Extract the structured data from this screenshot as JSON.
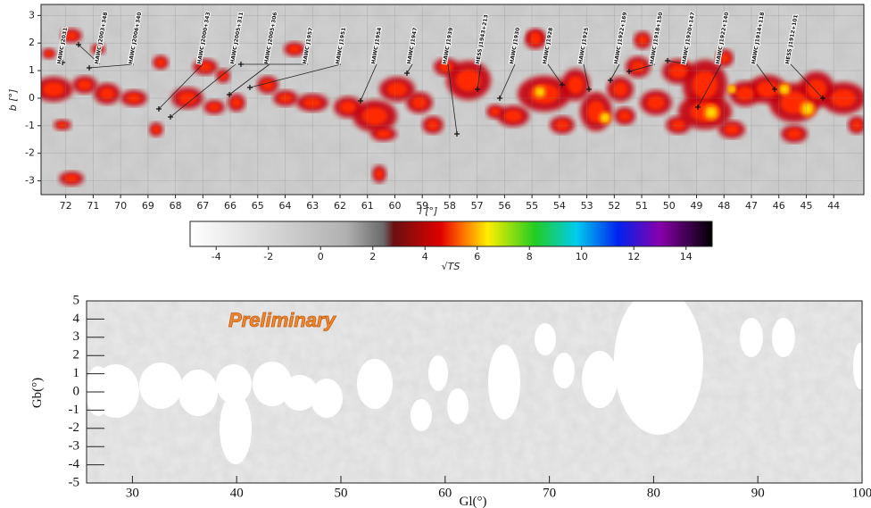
{
  "chart_data": [
    {
      "type": "heatmap",
      "x_label": "l [°]",
      "y_label": "b [°]",
      "xlim": [
        72.9,
        42.9
      ],
      "ylim": [
        -3.5,
        3.4
      ],
      "xticks": [
        72,
        71,
        70,
        69,
        68,
        67,
        66,
        65,
        64,
        63,
        62,
        61,
        60,
        59,
        58,
        57,
        56,
        55,
        54,
        53,
        52,
        51,
        50,
        49,
        48,
        47,
        46,
        45,
        44
      ],
      "yticks": [
        -3,
        -2,
        -1,
        0,
        1,
        2,
        3
      ],
      "grid": true,
      "annotations": [
        "HAWC J2031",
        "HAWC J2003+348",
        "HAWC J2006+340",
        "HAWC J2000+343",
        "HAWC J2005+311",
        "HAWC J2005+306",
        "HAWC J1957",
        "HAWC J1951",
        "HAWC J1954",
        "HAWC J1947",
        "HAWC J1939",
        "HESS J1943+213",
        "HAWC J1930",
        "HAWC J1928",
        "HAWC J1925",
        "HAWC J1922+169",
        "HAWC J1918+150",
        "HAWC J1920+147",
        "HAWC J1922+140",
        "HAWC J1914+118",
        "HESS J1912+101"
      ]
    },
    {
      "type": "colorbar",
      "x_label": "√TS",
      "xlim": [
        -5,
        15
      ],
      "xticks": [
        -4,
        -2,
        0,
        2,
        4,
        6,
        8,
        10,
        12,
        14
      ]
    },
    {
      "type": "heatmap",
      "x_label": "Gl(°)",
      "y_label": "Gb(°)",
      "annotation": "Preliminary",
      "xlim": [
        25.6,
        100
      ],
      "ylim": [
        -5,
        5
      ],
      "xticks": [
        30,
        40,
        50,
        60,
        70,
        80,
        90,
        100
      ],
      "yticks": [
        -5,
        -4,
        -3,
        -2,
        -1,
        0,
        1,
        2,
        3,
        4,
        5
      ]
    }
  ]
}
